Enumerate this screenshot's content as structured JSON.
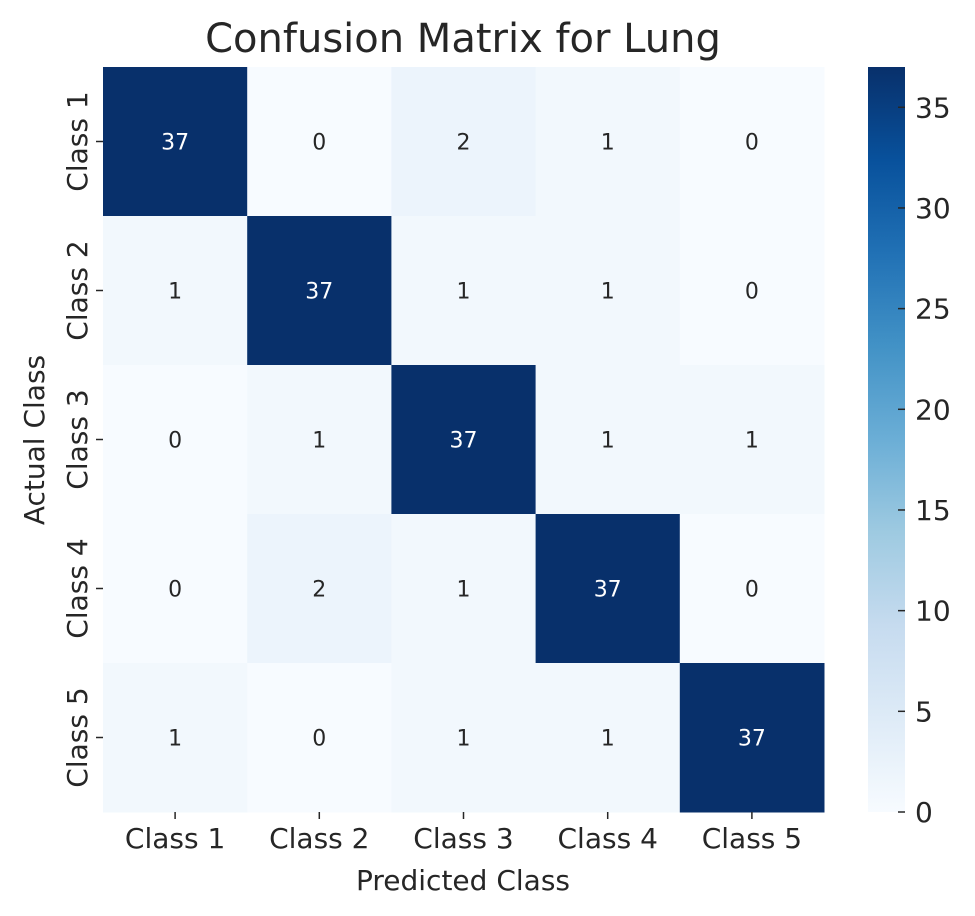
{
  "chart_data": {
    "type": "heatmap",
    "title": "Confusion Matrix for Lung",
    "xlabel": "Predicted Class",
    "ylabel": "Actual Class",
    "x_categories": [
      "Class 1",
      "Class 2",
      "Class 3",
      "Class 4",
      "Class 5"
    ],
    "y_categories": [
      "Class 1",
      "Class 2",
      "Class 3",
      "Class 4",
      "Class 5"
    ],
    "values": [
      [
        37,
        0,
        2,
        1,
        0
      ],
      [
        1,
        37,
        1,
        1,
        0
      ],
      [
        0,
        1,
        37,
        1,
        1
      ],
      [
        0,
        2,
        1,
        37,
        0
      ],
      [
        1,
        0,
        1,
        1,
        37
      ]
    ],
    "colormap": "Blues",
    "colorbar": {
      "range": [
        0,
        37
      ],
      "ticks": [
        0,
        5,
        10,
        15,
        20,
        25,
        30,
        35
      ]
    },
    "annotations": true
  }
}
